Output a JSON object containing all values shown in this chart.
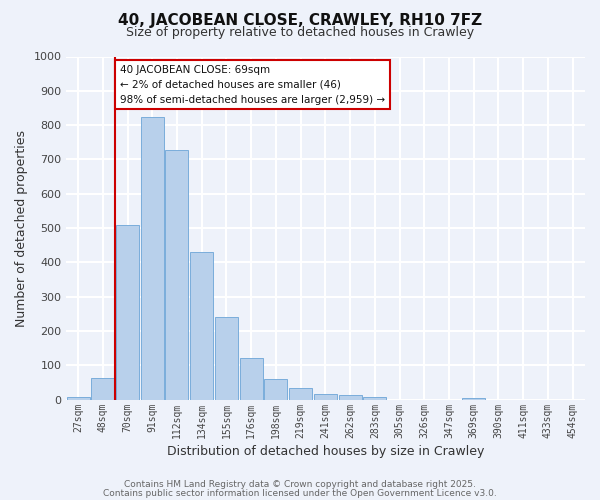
{
  "title": "40, JACOBEAN CLOSE, CRAWLEY, RH10 7FZ",
  "subtitle": "Size of property relative to detached houses in Crawley",
  "xlabel": "Distribution of detached houses by size in Crawley",
  "ylabel": "Number of detached properties",
  "bin_labels": [
    "27sqm",
    "48sqm",
    "70sqm",
    "91sqm",
    "112sqm",
    "134sqm",
    "155sqm",
    "176sqm",
    "198sqm",
    "219sqm",
    "241sqm",
    "262sqm",
    "283sqm",
    "305sqm",
    "326sqm",
    "347sqm",
    "369sqm",
    "390sqm",
    "411sqm",
    "433sqm",
    "454sqm"
  ],
  "bar_values": [
    8,
    62,
    510,
    825,
    728,
    430,
    240,
    120,
    60,
    35,
    15,
    12,
    8,
    0,
    0,
    0,
    5,
    0,
    0,
    0,
    0
  ],
  "bar_color": "#b8d0eb",
  "bar_edge_color": "#7aaddb",
  "vline_x_index": 2,
  "vline_color": "#cc0000",
  "annotation_text": "40 JACOBEAN CLOSE: 69sqm\n← 2% of detached houses are smaller (46)\n98% of semi-detached houses are larger (2,959) →",
  "annotation_box_color": "#ffffff",
  "annotation_box_edge_color": "#cc0000",
  "ylim": [
    0,
    1000
  ],
  "yticks": [
    0,
    100,
    200,
    300,
    400,
    500,
    600,
    700,
    800,
    900,
    1000
  ],
  "bg_color": "#eef2fa",
  "grid_color": "#ffffff",
  "footer_line1": "Contains HM Land Registry data © Crown copyright and database right 2025.",
  "footer_line2": "Contains public sector information licensed under the Open Government Licence v3.0."
}
